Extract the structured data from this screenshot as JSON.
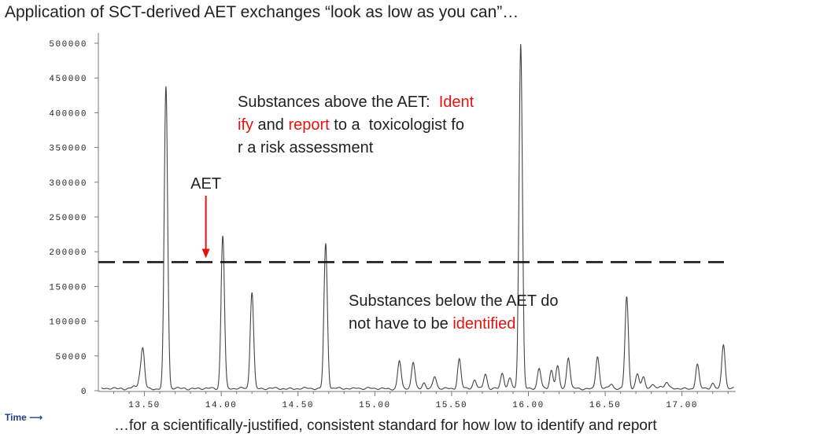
{
  "slide": {
    "title": "Application of SCT-derived AET exchanges “look as low as you can”…",
    "footer": "…for a scientifically-justified, consistent standard for how low to identify and  report",
    "time_label": "Time",
    "time_arrow": "⟶"
  },
  "colors": {
    "highlight": "#e8120c",
    "trace": "#444444",
    "threshold": "#1a1a1a"
  },
  "chart_data": {
    "type": "line",
    "xlim": [
      13.2,
      17.35
    ],
    "ylim": [
      0,
      500000
    ],
    "xticks": [
      13.5,
      14.0,
      14.5,
      15.0,
      15.5,
      16.0,
      16.5,
      17.0
    ],
    "xtick_labels": [
      "13.50",
      "14.00",
      "14.50",
      "15.00",
      "15.50",
      "16.00",
      "16.50",
      "17.00"
    ],
    "yticks": [
      0,
      50000,
      100000,
      150000,
      200000,
      250000,
      300000,
      350000,
      400000,
      450000,
      500000
    ],
    "ytick_labels": [
      "0",
      "50000",
      "100000",
      "150000",
      "200000",
      "250000",
      "300000",
      "350000",
      "400000",
      "450000",
      "500000"
    ],
    "grid": false,
    "baseline": 3000,
    "aet_threshold": 185000,
    "aet_label": "AET",
    "aet_arrow_x": 13.9,
    "peaks": [
      {
        "x": 13.35,
        "y": 4000
      },
      {
        "x": 13.43,
        "y": 6000
      },
      {
        "x": 13.47,
        "y": 18000
      },
      {
        "x": 13.49,
        "y": 58000
      },
      {
        "x": 13.64,
        "y": 438000
      },
      {
        "x": 13.76,
        "y": 4000
      },
      {
        "x": 14.01,
        "y": 224000
      },
      {
        "x": 14.2,
        "y": 143000
      },
      {
        "x": 14.68,
        "y": 212000
      },
      {
        "x": 14.89,
        "y": 5000
      },
      {
        "x": 15.16,
        "y": 43000
      },
      {
        "x": 15.25,
        "y": 41000
      },
      {
        "x": 15.32,
        "y": 12000
      },
      {
        "x": 15.39,
        "y": 20000
      },
      {
        "x": 15.55,
        "y": 46000
      },
      {
        "x": 15.65,
        "y": 15000
      },
      {
        "x": 15.72,
        "y": 25000
      },
      {
        "x": 15.83,
        "y": 25000
      },
      {
        "x": 15.88,
        "y": 17000
      },
      {
        "x": 15.95,
        "y": 500000
      },
      {
        "x": 16.07,
        "y": 32000
      },
      {
        "x": 16.15,
        "y": 30000
      },
      {
        "x": 16.19,
        "y": 35000
      },
      {
        "x": 16.26,
        "y": 48000
      },
      {
        "x": 16.45,
        "y": 50000
      },
      {
        "x": 16.54,
        "y": 10000
      },
      {
        "x": 16.64,
        "y": 136000
      },
      {
        "x": 16.71,
        "y": 23000
      },
      {
        "x": 16.75,
        "y": 20000
      },
      {
        "x": 16.81,
        "y": 9000
      },
      {
        "x": 16.86,
        "y": 8000
      },
      {
        "x": 16.9,
        "y": 12000
      },
      {
        "x": 17.1,
        "y": 38000
      },
      {
        "x": 17.2,
        "y": 10000
      },
      {
        "x": 17.27,
        "y": 68000
      }
    ],
    "annotation_above": {
      "lines": [
        [
          {
            "t": "Substances above the AET:  ",
            "hl": false
          },
          {
            "t": "Ident",
            "hl": true
          }
        ],
        [
          {
            "t": "ify",
            "hl": true
          },
          {
            "t": " and ",
            "hl": false
          },
          {
            "t": "report",
            "hl": true
          },
          {
            "t": " to a  toxicologist fo",
            "hl": false
          }
        ],
        [
          {
            "t": "r a risk assessment",
            "hl": false
          }
        ]
      ]
    },
    "annotation_below": {
      "lines": [
        [
          {
            "t": "Substances below the AET do",
            "hl": false
          }
        ],
        [
          {
            "t": "not have to be ",
            "hl": false
          },
          {
            "t": "identified",
            "hl": true
          }
        ]
      ]
    }
  }
}
